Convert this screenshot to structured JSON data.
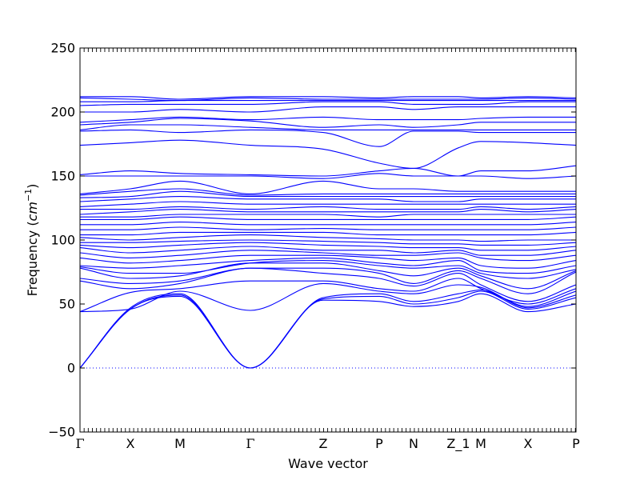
{
  "chart_data": {
    "type": "line",
    "title": "",
    "xlabel": "Wave vector",
    "ylabel": "Frequency (cm⁻¹)",
    "ylabel_parts": {
      "main": "Frequency (",
      "unit_base": "cm",
      "unit_exp": "−1",
      "close": ")"
    },
    "ylim": [
      -50,
      250
    ],
    "yticks": [
      -50,
      0,
      50,
      100,
      150,
      200,
      250
    ],
    "ytick_labels": [
      "−50",
      "0",
      "50",
      "100",
      "150",
      "200",
      "250"
    ],
    "high_symmetry_points": [
      {
        "label": "Γ",
        "x": 0.0
      },
      {
        "label": "X",
        "x": 0.1016
      },
      {
        "label": "M",
        "x": 0.2016
      },
      {
        "label": "Γ",
        "x": 0.3435
      },
      {
        "label": "Z",
        "x": 0.4903
      },
      {
        "label": "P",
        "x": 0.6032
      },
      {
        "label": "N",
        "x": 0.6726
      },
      {
        "label": "Z_1",
        "x": 0.7629
      },
      {
        "label": "M",
        "x": 0.8081
      },
      {
        "label": "X",
        "x": 0.9032
      },
      {
        "label": "P",
        "x": 1.0
      }
    ],
    "zero_line": 0,
    "line_color": "#0000ff",
    "zero_line_color": "#0000ff",
    "series": [
      {
        "values": [
          0,
          46,
          56,
          0,
          53,
          52,
          48,
          52,
          58,
          44,
          50
        ]
      },
      {
        "values": [
          0,
          46,
          57,
          0,
          54,
          56,
          50,
          55,
          60,
          46,
          55
        ]
      },
      {
        "values": [
          0,
          47,
          58,
          0,
          55,
          58,
          52,
          58,
          61,
          47,
          57
        ]
      },
      {
        "values": [
          44,
          46,
          60,
          45,
          66,
          60,
          58,
          65,
          63,
          48,
          60
        ]
      },
      {
        "values": [
          44,
          59,
          62,
          68,
          68,
          62,
          60,
          70,
          62,
          50,
          62
        ]
      },
      {
        "values": [
          68,
          62,
          66,
          78,
          74,
          70,
          64,
          74,
          65,
          52,
          65
        ]
      },
      {
        "values": [
          70,
          66,
          68,
          78,
          78,
          74,
          66,
          76,
          70,
          58,
          75
        ]
      },
      {
        "values": [
          78,
          70,
          72,
          82,
          82,
          76,
          72,
          78,
          72,
          62,
          76
        ]
      },
      {
        "values": [
          79,
          74,
          74,
          82,
          84,
          80,
          78,
          80,
          74,
          70,
          77
        ]
      },
      {
        "values": [
          80,
          78,
          80,
          84,
          86,
          82,
          80,
          84,
          76,
          74,
          80
        ]
      },
      {
        "values": [
          86,
          82,
          84,
          88,
          88,
          86,
          84,
          86,
          80,
          78,
          84
        ]
      },
      {
        "values": [
          90,
          86,
          88,
          92,
          90,
          88,
          88,
          90,
          86,
          84,
          88
        ]
      },
      {
        "values": [
          94,
          90,
          92,
          95,
          92,
          92,
          90,
          92,
          88,
          88,
          92
        ]
      },
      {
        "values": [
          96,
          94,
          96,
          98,
          96,
          95,
          94,
          94,
          92,
          92,
          95
        ]
      },
      {
        "values": [
          98,
          98,
          99,
          100,
          99,
          98,
          97,
          97,
          96,
          96,
          98
        ]
      },
      {
        "values": [
          102,
          100,
          102,
          104,
          102,
          101,
          100,
          100,
          99,
          100,
          100
        ]
      },
      {
        "values": [
          104,
          104,
          106,
          106,
          106,
          104,
          104,
          104,
          104,
          104,
          106
        ]
      },
      {
        "values": [
          108,
          108,
          110,
          108,
          109,
          108,
          108,
          108,
          108,
          108,
          110
        ]
      },
      {
        "values": [
          112,
          112,
          114,
          112,
          112,
          112,
          112,
          112,
          112,
          112,
          114
        ]
      },
      {
        "values": [
          116,
          116,
          118,
          116,
          116,
          116,
          116,
          116,
          116,
          116,
          118
        ]
      },
      {
        "values": [
          118,
          118,
          120,
          120,
          120,
          118,
          120,
          120,
          120,
          120,
          120
        ]
      },
      {
        "values": [
          120,
          122,
          124,
          122,
          122,
          122,
          122,
          122,
          124,
          122,
          124
        ]
      },
      {
        "values": [
          124,
          124,
          126,
          124,
          126,
          124,
          124,
          124,
          126,
          124,
          126
        ]
      },
      {
        "values": [
          126,
          128,
          130,
          128,
          128,
          128,
          128,
          128,
          128,
          128,
          128
        ]
      },
      {
        "values": [
          130,
          132,
          134,
          132,
          132,
          132,
          130,
          130,
          132,
          132,
          132
        ]
      },
      {
        "values": [
          133,
          134,
          138,
          134,
          134,
          134,
          134,
          134,
          134,
          134,
          134
        ]
      },
      {
        "values": [
          135,
          138,
          140,
          135,
          136,
          136,
          136,
          136,
          136,
          136,
          136
        ]
      },
      {
        "values": [
          136,
          140,
          146,
          136,
          146,
          140,
          140,
          138,
          138,
          138,
          138
        ]
      },
      {
        "values": [
          150,
          150,
          150,
          150,
          148,
          152,
          150,
          150,
          150,
          148,
          150
        ]
      },
      {
        "values": [
          151,
          154,
          152,
          151,
          150,
          154,
          156,
          150,
          154,
          154,
          158
        ]
      },
      {
        "values": [
          174,
          176,
          178,
          174,
          171,
          160,
          156,
          172,
          177,
          176,
          174
        ]
      },
      {
        "values": [
          185,
          186,
          184,
          186,
          184,
          173,
          185,
          185,
          184,
          184,
          184
        ]
      },
      {
        "values": [
          186,
          190,
          190,
          188,
          186,
          186,
          186,
          186,
          186,
          186,
          186
        ]
      },
      {
        "values": [
          190,
          192,
          195,
          193,
          188,
          190,
          188,
          190,
          192,
          192,
          192
        ]
      },
      {
        "values": [
          192,
          194,
          196,
          194,
          196,
          194,
          194,
          194,
          195,
          196,
          196
        ]
      },
      {
        "values": [
          200,
          200,
          202,
          200,
          204,
          204,
          202,
          204,
          204,
          204,
          204
        ]
      },
      {
        "values": [
          205,
          206,
          206,
          206,
          208,
          208,
          206,
          206,
          206,
          208,
          208
        ]
      },
      {
        "values": [
          208,
          208,
          209,
          209,
          209,
          209,
          209,
          209,
          209,
          209,
          209
        ]
      },
      {
        "values": [
          211,
          210,
          209,
          211,
          210,
          210,
          210,
          210,
          210,
          211,
          210
        ]
      },
      {
        "values": [
          212,
          212,
          210,
          212,
          212,
          211,
          212,
          212,
          211,
          212,
          211
        ]
      }
    ]
  }
}
